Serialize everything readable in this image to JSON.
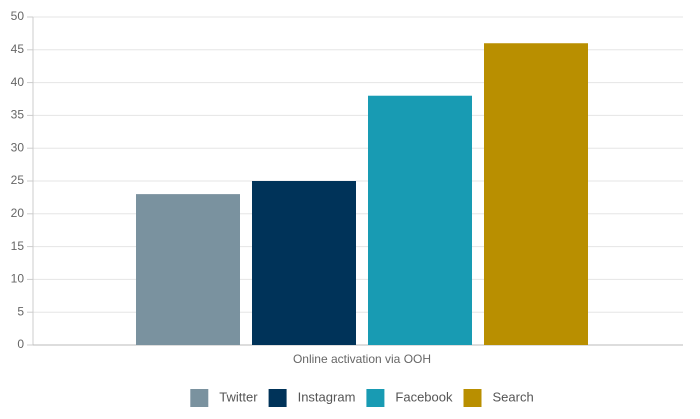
{
  "chart_data": {
    "type": "bar",
    "categories": [
      "Online activation via OOH"
    ],
    "series": [
      {
        "name": "Twitter",
        "color": "#7a929f",
        "values": [
          23
        ]
      },
      {
        "name": "Instagram",
        "color": "#003359",
        "values": [
          25
        ]
      },
      {
        "name": "Facebook",
        "color": "#189bb3",
        "values": [
          38
        ]
      },
      {
        "name": "Search",
        "color": "#b98f00",
        "values": [
          46
        ]
      }
    ],
    "ylim": [
      0,
      50
    ],
    "yticks": [
      0,
      5,
      10,
      15,
      20,
      25,
      30,
      35,
      40,
      45,
      50
    ],
    "grid": true,
    "legend": "bottom"
  }
}
